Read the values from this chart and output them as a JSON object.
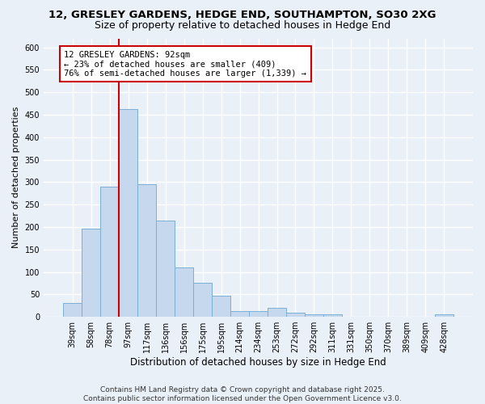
{
  "title1": "12, GRESLEY GARDENS, HEDGE END, SOUTHAMPTON, SO30 2XG",
  "title2": "Size of property relative to detached houses in Hedge End",
  "xlabel": "Distribution of detached houses by size in Hedge End",
  "ylabel": "Number of detached properties",
  "categories": [
    "39sqm",
    "58sqm",
    "78sqm",
    "97sqm",
    "117sqm",
    "136sqm",
    "156sqm",
    "175sqm",
    "195sqm",
    "214sqm",
    "234sqm",
    "253sqm",
    "272sqm",
    "292sqm",
    "311sqm",
    "331sqm",
    "350sqm",
    "370sqm",
    "389sqm",
    "409sqm",
    "428sqm"
  ],
  "values": [
    30,
    197,
    290,
    462,
    295,
    215,
    110,
    75,
    47,
    13,
    12,
    20,
    9,
    6,
    5,
    0,
    0,
    0,
    0,
    0,
    5
  ],
  "bar_color": "#c5d8ed",
  "bar_edgecolor": "#7bafd4",
  "vline_color": "#cc0000",
  "vline_x": 2.5,
  "annotation_title": "12 GRESLEY GARDENS: 92sqm",
  "annotation_line1": "← 23% of detached houses are smaller (409)",
  "annotation_line2": "76% of semi-detached houses are larger (1,339) →",
  "annotation_box_facecolor": "#ffffff",
  "annotation_box_edgecolor": "#cc0000",
  "ylim": [
    0,
    620
  ],
  "yticks": [
    0,
    50,
    100,
    150,
    200,
    250,
    300,
    350,
    400,
    450,
    500,
    550,
    600
  ],
  "footer": "Contains HM Land Registry data © Crown copyright and database right 2025.\nContains public sector information licensed under the Open Government Licence v3.0.",
  "bg_color": "#eaf0f8",
  "plot_bg_color": "#eaf0f8",
  "grid_color": "#ffffff",
  "title1_fontsize": 9.5,
  "title2_fontsize": 9,
  "ylabel_fontsize": 8,
  "xlabel_fontsize": 8.5,
  "tick_fontsize": 7,
  "annotation_fontsize": 7.5,
  "footer_fontsize": 6.5
}
